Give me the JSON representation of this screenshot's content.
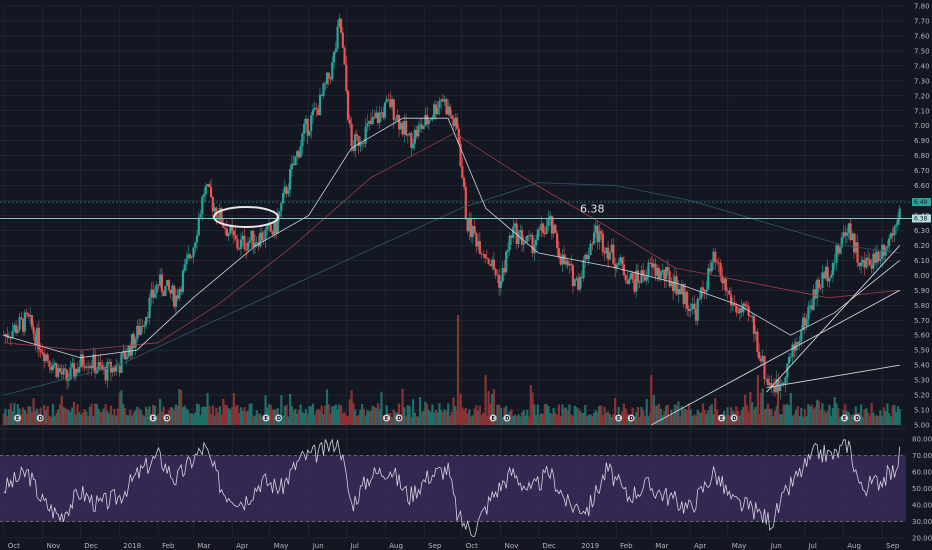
{
  "chart_data": [
    {
      "type": "candlestick",
      "xlabel": "",
      "ylabel": "",
      "ylim": [
        5.0,
        7.8
      ],
      "y_ticks": [
        "5.00",
        "5.10",
        "5.20",
        "5.30",
        "5.40",
        "5.50",
        "5.60",
        "5.70",
        "5.80",
        "5.90",
        "6.00",
        "6.10",
        "6.20",
        "6.30",
        "6.40",
        "6.50",
        "6.60",
        "6.70",
        "6.80",
        "6.90",
        "7.00",
        "7.10",
        "7.20",
        "7.30",
        "7.40",
        "7.50",
        "7.60",
        "7.70",
        "7.80"
      ],
      "x_ticks": [
        "Oct",
        "Nov",
        "Dec",
        "2018",
        "Feb",
        "Mar",
        "Apr",
        "May",
        "Jun",
        "Jul",
        "Aug",
        "Sep",
        "Oct",
        "Nov",
        "Dec",
        "2019",
        "Feb",
        "Mar",
        "Apr",
        "May",
        "Jun",
        "Jul",
        "Aug",
        "Sep"
      ],
      "last_price": "6.49",
      "level_price": "6.38",
      "annotation": "6.38",
      "earnings_markers": [
        "E",
        "D",
        "E",
        "D",
        "E",
        "D",
        "E",
        "D",
        "E",
        "D",
        "E",
        "D",
        "E",
        "D",
        "E",
        "D"
      ],
      "price_path": [
        [
          "2017-10-01",
          5.6
        ],
        [
          "2017-10-20",
          5.7
        ],
        [
          "2017-11-05",
          5.45
        ],
        [
          "2017-11-20",
          5.3
        ],
        [
          "2017-12-05",
          5.45
        ],
        [
          "2017-12-20",
          5.35
        ],
        [
          "2018-01-01",
          5.4
        ],
        [
          "2018-01-15",
          5.6
        ],
        [
          "2018-02-01",
          5.95
        ],
        [
          "2018-02-15",
          5.85
        ],
        [
          "2018-03-01",
          6.2
        ],
        [
          "2018-03-10",
          6.58
        ],
        [
          "2018-03-25",
          6.35
        ],
        [
          "2018-04-05",
          6.2
        ],
        [
          "2018-04-20",
          6.25
        ],
        [
          "2018-05-05",
          6.3
        ],
        [
          "2018-05-15",
          6.6
        ],
        [
          "2018-05-28",
          6.95
        ],
        [
          "2018-06-10",
          7.15
        ],
        [
          "2018-06-20",
          7.4
        ],
        [
          "2018-06-26",
          7.7
        ],
        [
          "2018-07-05",
          6.85
        ],
        [
          "2018-07-20",
          7.0
        ],
        [
          "2018-08-05",
          7.15
        ],
        [
          "2018-08-20",
          6.9
        ],
        [
          "2018-09-05",
          7.05
        ],
        [
          "2018-09-15",
          7.2
        ],
        [
          "2018-09-28",
          6.95
        ],
        [
          "2018-10-05",
          6.35
        ],
        [
          "2018-10-20",
          6.15
        ],
        [
          "2018-11-01",
          5.95
        ],
        [
          "2018-11-10",
          6.3
        ],
        [
          "2018-11-25",
          6.2
        ],
        [
          "2018-12-10",
          6.35
        ],
        [
          "2018-12-20",
          6.1
        ],
        [
          "2019-01-01",
          5.95
        ],
        [
          "2019-01-15",
          6.3
        ],
        [
          "2019-02-01",
          6.1
        ],
        [
          "2019-02-15",
          5.95
        ],
        [
          "2019-03-01",
          6.05
        ],
        [
          "2019-03-20",
          5.95
        ],
        [
          "2019-04-05",
          5.75
        ],
        [
          "2019-04-20",
          6.1
        ],
        [
          "2019-05-05",
          5.8
        ],
        [
          "2019-05-20",
          5.7
        ],
        [
          "2019-06-01",
          5.3
        ],
        [
          "2019-06-10",
          5.25
        ],
        [
          "2019-06-25",
          5.55
        ],
        [
          "2019-07-10",
          5.9
        ],
        [
          "2019-07-25",
          6.1
        ],
        [
          "2019-08-05",
          6.35
        ],
        [
          "2019-08-15",
          6.05
        ],
        [
          "2019-08-30",
          6.15
        ],
        [
          "2019-09-10",
          6.3
        ],
        [
          "2019-09-15",
          6.49
        ]
      ],
      "ma_short": [
        [
          "2017-10-01",
          5.6
        ],
        [
          "2017-12-01",
          5.45
        ],
        [
          "2018-01-15",
          5.5
        ],
        [
          "2018-03-01",
          5.85
        ],
        [
          "2018-04-20",
          6.2
        ],
        [
          "2018-06-01",
          6.4
        ],
        [
          "2018-07-05",
          6.85
        ],
        [
          "2018-08-15",
          7.05
        ],
        [
          "2018-09-20",
          7.05
        ],
        [
          "2018-10-20",
          6.45
        ],
        [
          "2018-12-01",
          6.15
        ],
        [
          "2019-02-01",
          6.05
        ],
        [
          "2019-03-20",
          5.95
        ],
        [
          "2019-05-10",
          5.8
        ],
        [
          "2019-06-20",
          5.6
        ],
        [
          "2019-07-25",
          5.75
        ],
        [
          "2019-09-15",
          6.1
        ]
      ],
      "ma_mid": [
        [
          "2017-10-01",
          5.55
        ],
        [
          "2017-12-01",
          5.5
        ],
        [
          "2018-02-01",
          5.55
        ],
        [
          "2018-03-20",
          5.8
        ],
        [
          "2018-05-20",
          6.2
        ],
        [
          "2018-07-20",
          6.65
        ],
        [
          "2018-09-25",
          6.95
        ],
        [
          "2018-11-20",
          6.65
        ],
        [
          "2019-01-20",
          6.35
        ],
        [
          "2019-03-20",
          6.05
        ],
        [
          "2019-05-20",
          5.95
        ],
        [
          "2019-07-20",
          5.85
        ],
        [
          "2019-09-15",
          5.9
        ]
      ],
      "ma_long": [
        [
          "2017-10-01",
          5.2
        ],
        [
          "2018-01-01",
          5.4
        ],
        [
          "2018-04-01",
          5.75
        ],
        [
          "2018-07-01",
          6.1
        ],
        [
          "2018-10-01",
          6.45
        ],
        [
          "2018-12-01",
          6.62
        ],
        [
          "2019-02-01",
          6.6
        ],
        [
          "2019-04-01",
          6.5
        ],
        [
          "2019-06-01",
          6.35
        ],
        [
          "2019-08-01",
          6.2
        ],
        [
          "2019-09-15",
          6.15
        ]
      ],
      "trendline_short": [
        [
          "2019-06-01",
          5.22
        ],
        [
          "2019-09-15",
          6.2
        ]
      ],
      "trendline_long": [
        [
          "2019-03-01",
          5.0
        ],
        [
          "2019-09-15",
          5.9
        ]
      ],
      "trendline_upper": [
        [
          "2019-06-01",
          5.25
        ],
        [
          "2019-09-15",
          5.4
        ]
      ]
    },
    {
      "type": "line",
      "ylim": [
        20,
        80
      ],
      "y_ticks": [
        "20.00",
        "30.00",
        "40.00",
        "50.00",
        "60.00",
        "70.00",
        "80.00"
      ],
      "overbought": 70,
      "oversold": 30,
      "rsi": [
        [
          "2017-10-01",
          50
        ],
        [
          "2017-10-20",
          60
        ],
        [
          "2017-11-01",
          42
        ],
        [
          "2017-11-15",
          33
        ],
        [
          "2017-12-01",
          48
        ],
        [
          "2017-12-15",
          40
        ],
        [
          "2018-01-01",
          45
        ],
        [
          "2018-01-15",
          58
        ],
        [
          "2018-02-01",
          70
        ],
        [
          "2018-02-15",
          55
        ],
        [
          "2018-03-01",
          68
        ],
        [
          "2018-03-10",
          75
        ],
        [
          "2018-03-25",
          48
        ],
        [
          "2018-04-10",
          42
        ],
        [
          "2018-04-25",
          55
        ],
        [
          "2018-05-10",
          50
        ],
        [
          "2018-05-25",
          68
        ],
        [
          "2018-06-10",
          72
        ],
        [
          "2018-06-25",
          80
        ],
        [
          "2018-07-05",
          40
        ],
        [
          "2018-07-20",
          58
        ],
        [
          "2018-08-05",
          62
        ],
        [
          "2018-08-20",
          45
        ],
        [
          "2018-09-05",
          58
        ],
        [
          "2018-09-20",
          62
        ],
        [
          "2018-09-28",
          32
        ],
        [
          "2018-10-10",
          24
        ],
        [
          "2018-10-25",
          45
        ],
        [
          "2018-11-10",
          60
        ],
        [
          "2018-11-25",
          48
        ],
        [
          "2018-12-10",
          60
        ],
        [
          "2018-12-25",
          40
        ],
        [
          "2019-01-10",
          38
        ],
        [
          "2019-01-25",
          62
        ],
        [
          "2019-02-10",
          45
        ],
        [
          "2019-02-25",
          52
        ],
        [
          "2019-03-15",
          45
        ],
        [
          "2019-04-01",
          38
        ],
        [
          "2019-04-20",
          60
        ],
        [
          "2019-05-05",
          42
        ],
        [
          "2019-05-20",
          38
        ],
        [
          "2019-06-05",
          30
        ],
        [
          "2019-06-20",
          52
        ],
        [
          "2019-07-10",
          72
        ],
        [
          "2019-07-25",
          70
        ],
        [
          "2019-08-05",
          78
        ],
        [
          "2019-08-15",
          50
        ],
        [
          "2019-08-30",
          55
        ],
        [
          "2019-09-10",
          60
        ],
        [
          "2019-09-15",
          70
        ]
      ]
    }
  ],
  "colors": {
    "background": "#131722",
    "grid": "#2a2e39",
    "up": "#26a69a",
    "down": "#ef5350",
    "volume_up": "#1f6f68",
    "volume_down": "#8a3334",
    "ma_short": "#d1d4dc",
    "ma_mid": "#9c3b48",
    "ma_long": "#2c5a6e",
    "level_line": "#7ec7c5",
    "trendline": "#d1d4dc",
    "rsi_line": "#d1d4dc",
    "rsi_band": "#3b2a5a",
    "tag_last": "#26a69a",
    "tag_level": "#b2dfdb",
    "earnings": "#d1d4dc"
  }
}
